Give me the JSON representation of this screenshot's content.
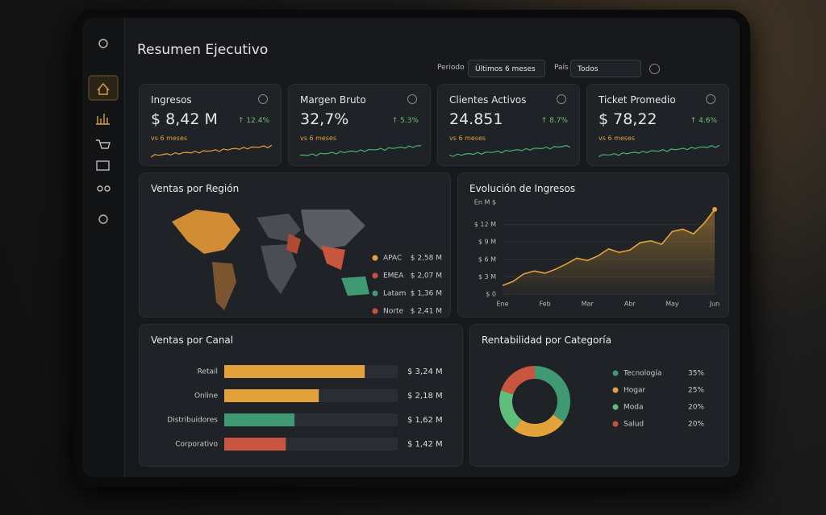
{
  "title": "Resumen Ejecutivo",
  "filters": [
    {
      "label": "Periodo",
      "value": "Últimos 6 meses"
    },
    {
      "label": "País",
      "value": "Todos"
    }
  ],
  "kpis": [
    {
      "title": "Ingresos",
      "value": "$ 8,42 M",
      "change": "↑ 12.4%",
      "compare": "vs 6 meses"
    },
    {
      "title": "Margen Bruto",
      "value": "32,7%",
      "change": "↑ 5.3%",
      "compare": "vs 6 meses"
    },
    {
      "title": "Clientes Activos",
      "value": "24.851",
      "change": "↑ 8.7%",
      "compare": "vs 6 meses"
    },
    {
      "title": "Ticket Promedio",
      "value": "$ 78,22",
      "change": "↑ 4.6%",
      "compare": "vs 6 meses"
    }
  ],
  "region": {
    "title": "Ventas por Región",
    "items": [
      {
        "name": "APAC",
        "value": "$ 2,58 M",
        "color": "#e3a23a"
      },
      {
        "name": "EMEA",
        "value": "$ 2,07 M",
        "color": "#c8553d"
      },
      {
        "name": "Latam",
        "value": "$ 1,36 M",
        "color": "#3f9a74"
      },
      {
        "name": "Norte",
        "value": "$ 2,41 M",
        "color": "#c8553d"
      }
    ]
  },
  "revenue_chart": {
    "type": "line",
    "title": "Evolución de Ingresos",
    "y_label": "En M $",
    "color": "#e3a23a",
    "x": [
      0,
      0.25,
      0.5,
      0.75,
      1,
      1.25,
      1.5,
      1.75,
      2,
      2.25,
      2.5,
      2.75,
      3,
      3.25,
      3.5,
      3.75,
      4,
      4.25,
      4.5,
      4.75,
      5
    ],
    "values": [
      1.5,
      2.2,
      3.5,
      4.0,
      3.6,
      4.3,
      5.2,
      6.2,
      5.8,
      6.6,
      7.8,
      7.2,
      7.6,
      8.9,
      9.2,
      8.6,
      10.8,
      11.2,
      10.4,
      12.2,
      14.6
    ],
    "xlim": [
      0,
      5
    ],
    "xticks": [
      {
        "value": 0,
        "label": "Ene"
      },
      {
        "value": 1,
        "label": "Feb"
      },
      {
        "value": 2,
        "label": "Mar"
      },
      {
        "value": 3,
        "label": "Abr"
      },
      {
        "value": 4,
        "label": "May"
      },
      {
        "value": 5,
        "label": "Jun"
      }
    ],
    "ylim": [
      0,
      15
    ],
    "yticks": [
      {
        "value": 0,
        "label": "$ 0"
      },
      {
        "value": 3,
        "label": "$ 3 M"
      },
      {
        "value": 6,
        "label": "$ 6 M"
      },
      {
        "value": 9,
        "label": "$ 9 M"
      },
      {
        "value": 12,
        "label": "$ 12 M"
      }
    ],
    "grid": true
  },
  "channel_chart": {
    "type": "hbar",
    "title": "Ventas por Canal",
    "categories": [
      "Retail",
      "Online",
      "Distribuidores",
      "Corporativo"
    ],
    "values": [
      3.24,
      2.18,
      1.62,
      1.42
    ],
    "value_labels": [
      "$ 3,24 M",
      "$ 2,18 M",
      "$ 1,62 M",
      "$ 1,42 M"
    ],
    "colors": [
      "#e3a23a",
      "#e3a23a",
      "#3f9a74",
      "#c8553d"
    ],
    "xlim": [
      0,
      4
    ]
  },
  "category_chart": {
    "type": "donut",
    "title": "Rentabilidad por Categoría",
    "categories": [
      "Tecnología",
      "Hogar",
      "Moda",
      "Salud"
    ],
    "values": [
      35,
      25,
      20,
      20
    ],
    "value_labels": [
      "35%",
      "25%",
      "20%",
      "20%"
    ],
    "colors": [
      "#3f9a74",
      "#e3a23a",
      "#5fbf7a",
      "#c8553d"
    ]
  }
}
